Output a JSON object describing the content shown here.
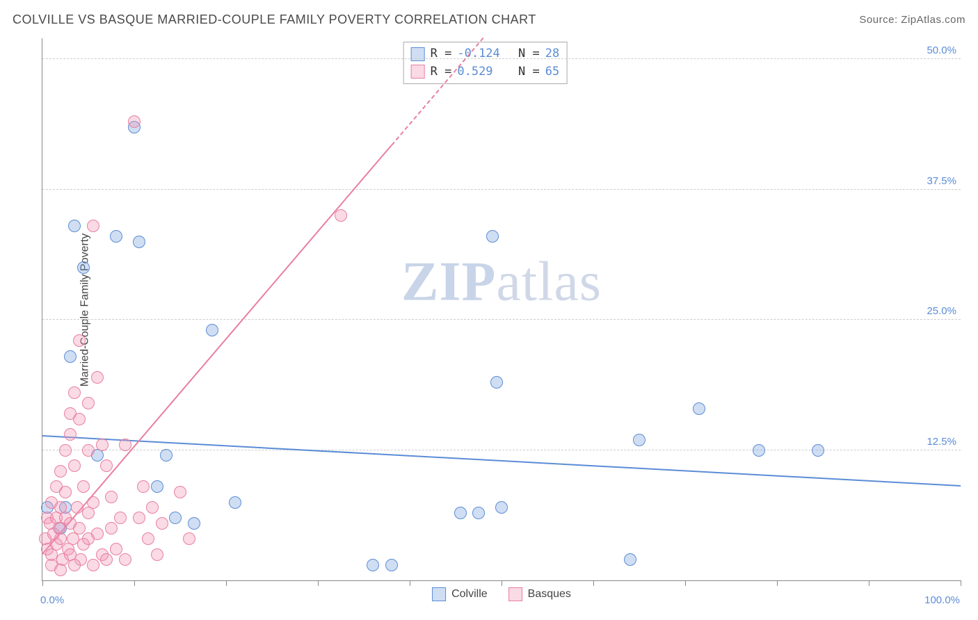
{
  "header": {
    "title": "COLVILLE VS BASQUE MARRIED-COUPLE FAMILY POVERTY CORRELATION CHART",
    "source_prefix": "Source: ",
    "source": "ZipAtlas.com"
  },
  "ylabel": "Married-Couple Family Poverty",
  "watermark": {
    "bold": "ZIP",
    "rest": "atlas"
  },
  "chart": {
    "type": "scatter",
    "xlim": [
      0,
      100
    ],
    "ylim": [
      0,
      52
    ],
    "x_tick_positions": [
      0,
      10,
      20,
      30,
      40,
      50,
      60,
      70,
      80,
      90,
      100
    ],
    "y_gridlines": [
      12.5,
      25.0,
      37.5,
      50.0
    ],
    "y_tick_labels": [
      "12.5%",
      "25.0%",
      "37.5%",
      "50.0%"
    ],
    "x_min_label": "0.0%",
    "x_max_label": "100.0%",
    "background_color": "#ffffff",
    "grid_color": "#cccccc",
    "axis_color": "#888888",
    "axis_value_color": "#5b8cd6",
    "marker_radius": 8,
    "marker_fill_opacity": 0.35,
    "series": [
      {
        "name": "Colville",
        "stroke": "#5b8cd6",
        "fill": "rgba(120,160,220,0.35)",
        "R": "-0.124",
        "N": "28",
        "trend": {
          "x1": 0,
          "y1": 13.8,
          "x2": 100,
          "y2": 9.0,
          "solid_until_x": 100
        },
        "points": [
          [
            0.5,
            7.0
          ],
          [
            3.0,
            21.5
          ],
          [
            3.5,
            34.0
          ],
          [
            4.5,
            30.0
          ],
          [
            2.5,
            7.0
          ],
          [
            6.0,
            12.0
          ],
          [
            8.0,
            33.0
          ],
          [
            10.5,
            32.5
          ],
          [
            10.0,
            43.5
          ],
          [
            13.5,
            12.0
          ],
          [
            12.5,
            9.0
          ],
          [
            14.5,
            6.0
          ],
          [
            16.5,
            5.5
          ],
          [
            18.5,
            24.0
          ],
          [
            21.0,
            7.5
          ],
          [
            36.0,
            1.5
          ],
          [
            38.0,
            1.5
          ],
          [
            45.5,
            6.5
          ],
          [
            47.5,
            6.5
          ],
          [
            49.0,
            33.0
          ],
          [
            49.5,
            19.0
          ],
          [
            65.0,
            13.5
          ],
          [
            64.0,
            2.0
          ],
          [
            71.5,
            16.5
          ],
          [
            78.0,
            12.5
          ],
          [
            84.5,
            12.5
          ],
          [
            50.0,
            7.0
          ],
          [
            2.0,
            5.0
          ]
        ]
      },
      {
        "name": "Basques",
        "stroke": "#e87fa0",
        "fill": "rgba(240,150,180,0.35)",
        "R": "0.529",
        "N": "65",
        "trend": {
          "x1": 0,
          "y1": 2.5,
          "x2": 48,
          "y2": 52,
          "solid_until_x": 38
        },
        "points": [
          [
            0.3,
            4.0
          ],
          [
            0.5,
            6.0
          ],
          [
            0.5,
            3.0
          ],
          [
            0.8,
            5.5
          ],
          [
            1.0,
            7.5
          ],
          [
            1.0,
            2.5
          ],
          [
            1.2,
            4.5
          ],
          [
            1.5,
            9.0
          ],
          [
            1.5,
            6.0
          ],
          [
            1.5,
            3.5
          ],
          [
            1.8,
            5.0
          ],
          [
            2.0,
            10.5
          ],
          [
            2.0,
            7.0
          ],
          [
            2.0,
            4.0
          ],
          [
            2.2,
            2.0
          ],
          [
            2.5,
            12.5
          ],
          [
            2.5,
            8.5
          ],
          [
            2.5,
            6.0
          ],
          [
            2.8,
            3.0
          ],
          [
            3.0,
            16.0
          ],
          [
            3.0,
            14.0
          ],
          [
            3.0,
            5.5
          ],
          [
            3.0,
            2.5
          ],
          [
            3.3,
            4.0
          ],
          [
            3.5,
            18.0
          ],
          [
            3.5,
            11.0
          ],
          [
            3.8,
            7.0
          ],
          [
            4.0,
            23.0
          ],
          [
            4.0,
            15.5
          ],
          [
            4.0,
            5.0
          ],
          [
            4.2,
            2.0
          ],
          [
            4.5,
            9.0
          ],
          [
            4.5,
            3.5
          ],
          [
            5.0,
            17.0
          ],
          [
            5.0,
            12.5
          ],
          [
            5.0,
            6.5
          ],
          [
            5.0,
            4.0
          ],
          [
            5.5,
            34.0
          ],
          [
            5.5,
            7.5
          ],
          [
            6.0,
            19.5
          ],
          [
            6.0,
            4.5
          ],
          [
            6.5,
            13.0
          ],
          [
            6.5,
            2.5
          ],
          [
            7.0,
            11.0
          ],
          [
            7.5,
            5.0
          ],
          [
            7.5,
            8.0
          ],
          [
            8.0,
            3.0
          ],
          [
            8.5,
            6.0
          ],
          [
            9.0,
            2.0
          ],
          [
            9.0,
            13.0
          ],
          [
            10.0,
            44.0
          ],
          [
            10.5,
            6.0
          ],
          [
            11.0,
            9.0
          ],
          [
            11.5,
            4.0
          ],
          [
            12.0,
            7.0
          ],
          [
            12.5,
            2.5
          ],
          [
            13.0,
            5.5
          ],
          [
            15.0,
            8.5
          ],
          [
            16.0,
            4.0
          ],
          [
            1.0,
            1.5
          ],
          [
            2.0,
            1.0
          ],
          [
            3.5,
            1.5
          ],
          [
            5.5,
            1.5
          ],
          [
            7.0,
            2.0
          ],
          [
            32.5,
            35.0
          ]
        ]
      }
    ]
  },
  "legend": {
    "series1": "Colville",
    "series2": "Basques"
  },
  "stats_labels": {
    "R": "R =",
    "N": "N ="
  }
}
